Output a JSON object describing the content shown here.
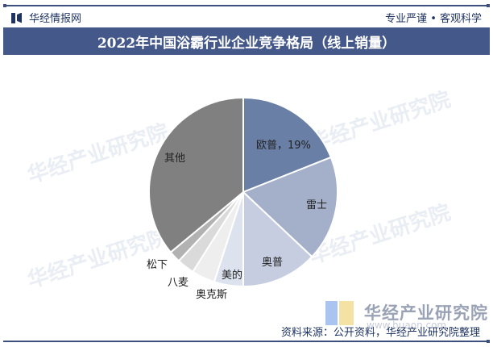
{
  "header": {
    "brand": "华经情报网",
    "slogan": "专业严谨 • 客观科学",
    "title": "2022年中国浴霸行业企业竞争格局（线上销量）"
  },
  "chart_data": {
    "type": "pie",
    "title": "2022年中国浴霸行业企业竞争格局（线上销量）",
    "categories": [
      "欧普",
      "雷士",
      "奥普",
      "美的",
      "奥克斯",
      "八麦",
      "松下",
      "其他"
    ],
    "values": [
      19,
      18,
      13,
      5,
      4,
      3,
      2,
      36
    ],
    "labels": [
      "欧普，19%",
      "雷士",
      "奥普",
      "美的",
      "奥克斯",
      "八麦",
      "松下",
      "其他"
    ],
    "colors": [
      "#6a7fa6",
      "#a4b0ca",
      "#c6cde0",
      "#dde3ee",
      "#eeeeee",
      "#dadada",
      "#b2b2b2",
      "#808080"
    ],
    "start_angle": "12 o'clock, clockwise",
    "legend": "none (data labels)"
  },
  "watermark": {
    "text": "华经产业研究院",
    "url": "www.huaon.com"
  },
  "footer": {
    "logo_text": "华经产业研究院",
    "logo_url": "www.huaon.com",
    "source": "资料来源：公开资料，华经产业研究院整理"
  }
}
